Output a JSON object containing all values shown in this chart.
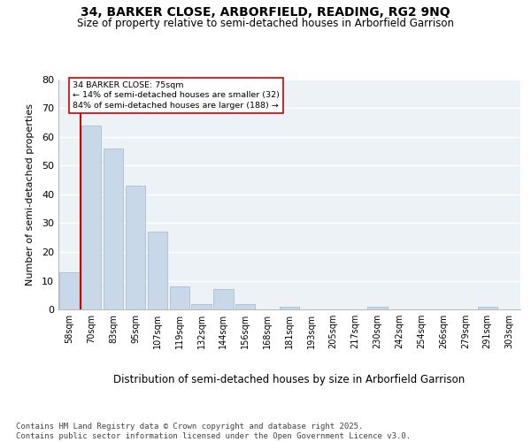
{
  "title": "34, BARKER CLOSE, ARBORFIELD, READING, RG2 9NQ",
  "subtitle": "Size of property relative to semi-detached houses in Arborfield Garrison",
  "xlabel": "Distribution of semi-detached houses by size in Arborfield Garrison",
  "ylabel": "Number of semi-detached properties",
  "categories": [
    "58sqm",
    "70sqm",
    "83sqm",
    "95sqm",
    "107sqm",
    "119sqm",
    "132sqm",
    "144sqm",
    "156sqm",
    "168sqm",
    "181sqm",
    "193sqm",
    "205sqm",
    "217sqm",
    "230sqm",
    "242sqm",
    "254sqm",
    "266sqm",
    "279sqm",
    "291sqm",
    "303sqm"
  ],
  "values": [
    13,
    64,
    56,
    43,
    27,
    8,
    2,
    7,
    2,
    0,
    1,
    0,
    0,
    0,
    1,
    0,
    0,
    0,
    0,
    1,
    0
  ],
  "bar_color": "#c8d8e8",
  "bar_edge_color": "#a0b8cc",
  "property_line_color": "#cc0000",
  "annotation_title": "34 BARKER CLOSE: 75sqm",
  "annotation_line1": "← 14% of semi-detached houses are smaller (32)",
  "annotation_line2": "84% of semi-detached houses are larger (188) →",
  "annotation_box_color": "#cc0000",
  "ylim": [
    0,
    80
  ],
  "yticks": [
    0,
    10,
    20,
    30,
    40,
    50,
    60,
    70,
    80
  ],
  "background_color": "#edf2f7",
  "footer": "Contains HM Land Registry data © Crown copyright and database right 2025.\nContains public sector information licensed under the Open Government Licence v3.0.",
  "title_fontsize": 10,
  "subtitle_fontsize": 8.5,
  "xlabel_fontsize": 8.5,
  "ylabel_fontsize": 8,
  "tick_fontsize": 7,
  "footer_fontsize": 6.5
}
